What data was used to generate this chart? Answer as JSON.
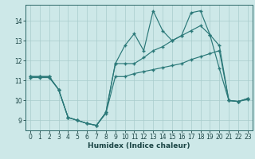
{
  "xlabel": "Humidex (Indice chaleur)",
  "bg_color": "#cde8e8",
  "grid_color": "#a8cccc",
  "line_color": "#2a7878",
  "xlim": [
    -0.5,
    23.5
  ],
  "ylim": [
    8.5,
    14.8
  ],
  "xticks": [
    0,
    1,
    2,
    3,
    4,
    5,
    6,
    7,
    8,
    9,
    10,
    11,
    12,
    13,
    14,
    15,
    16,
    17,
    18,
    19,
    20,
    21,
    22,
    23
  ],
  "yticks": [
    9,
    10,
    11,
    12,
    13,
    14
  ],
  "line1_y": [
    11.2,
    11.2,
    11.2,
    10.55,
    9.15,
    9.0,
    8.85,
    8.75,
    9.4,
    11.85,
    12.75,
    13.35,
    12.5,
    14.5,
    13.5,
    13.0,
    13.25,
    14.4,
    14.5,
    13.3,
    11.6,
    10.0,
    9.95,
    10.1
  ],
  "line2_y": [
    11.2,
    11.2,
    11.2,
    10.55,
    9.15,
    9.0,
    8.85,
    8.75,
    9.4,
    11.85,
    11.85,
    11.85,
    12.15,
    12.5,
    12.7,
    13.0,
    13.25,
    13.5,
    13.75,
    13.3,
    12.75,
    10.0,
    9.95,
    10.1
  ],
  "line3_y": [
    11.15,
    11.15,
    11.15,
    10.55,
    9.15,
    9.0,
    8.85,
    8.75,
    9.35,
    11.2,
    11.2,
    11.35,
    11.45,
    11.55,
    11.65,
    11.75,
    11.85,
    12.05,
    12.2,
    12.35,
    12.5,
    10.0,
    9.95,
    10.05
  ]
}
